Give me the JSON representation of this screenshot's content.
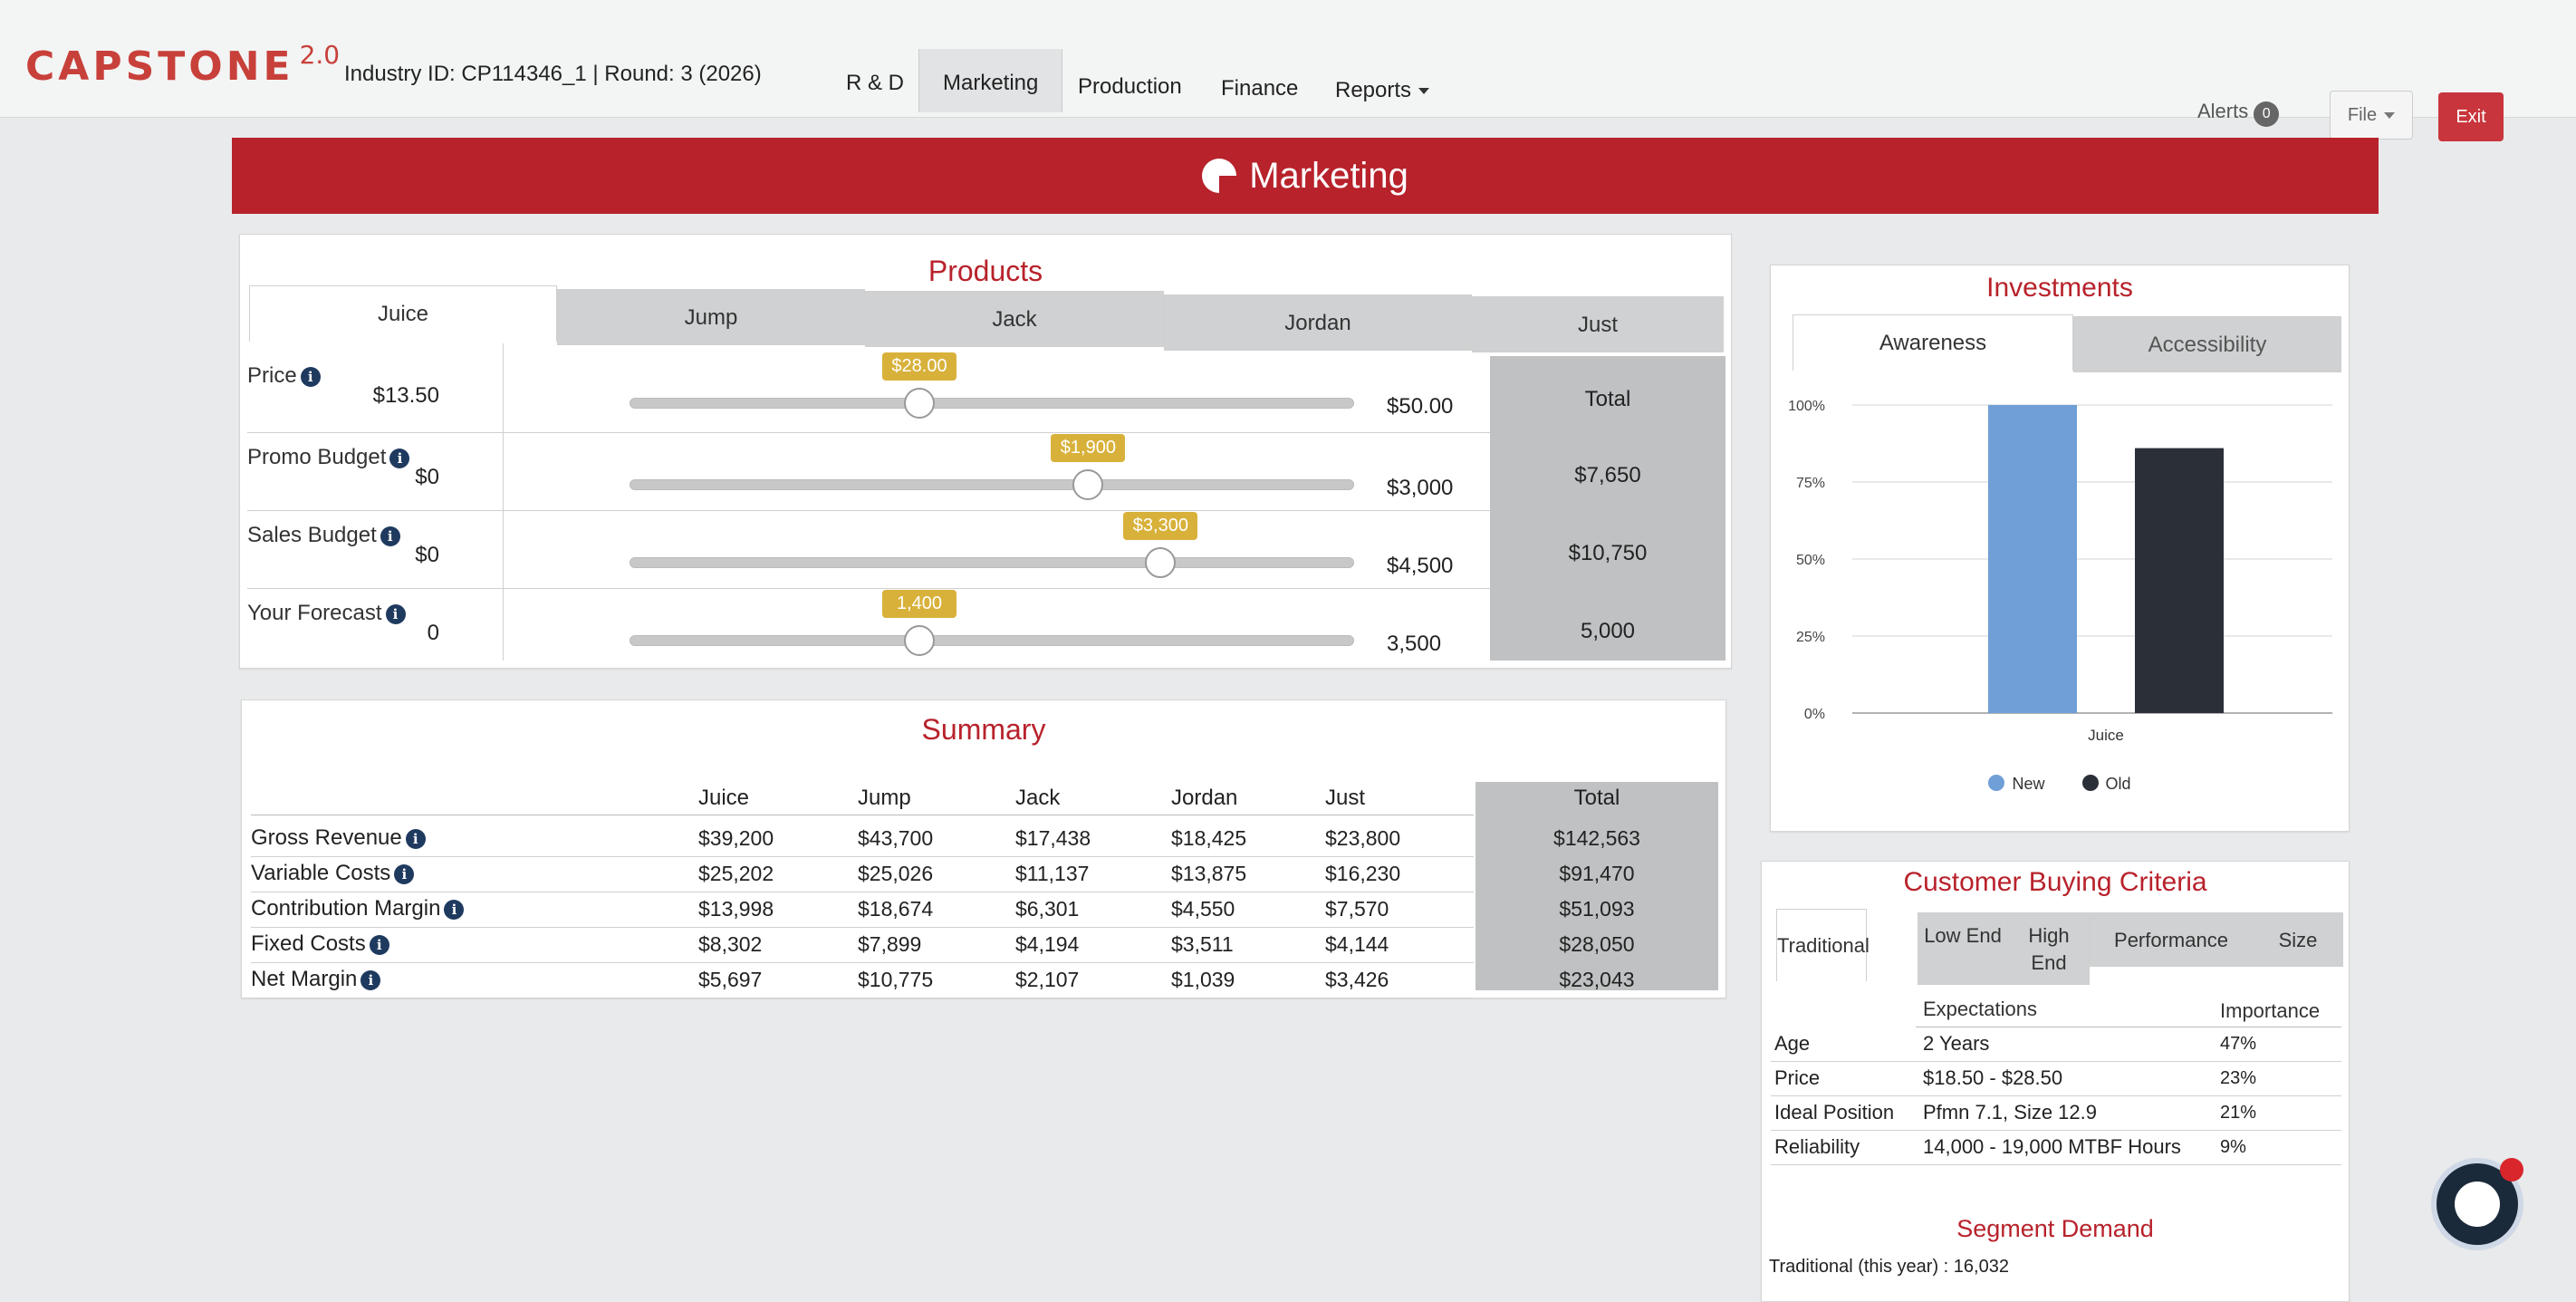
{
  "app": {
    "logo": "CAPSTONE",
    "logo_version": "2.0",
    "industry_info": "Industry ID: CP114346_1 |  Round: 3 (2026)",
    "nav": [
      "R & D",
      "Marketing",
      "Production",
      "Finance",
      "Reports"
    ],
    "alerts_label": "Alerts",
    "alerts_count": "0",
    "file_label": "File",
    "exit_label": "Exit"
  },
  "banner": {
    "title": "Marketing"
  },
  "products": {
    "title": "Products",
    "tabs": [
      "Juice",
      "Jump",
      "Jack",
      "Jordan",
      "Just"
    ],
    "active_tab": "Juice",
    "total_header": "Total",
    "rows": [
      {
        "label": "Price",
        "min": "$13.50",
        "max": "$50.00",
        "value": "$28.00",
        "fraction": 0.4,
        "total": ""
      },
      {
        "label": "Promo Budget",
        "min": "$0",
        "max": "$3,000",
        "value": "$1,900",
        "fraction": 0.633,
        "total": "$7,650"
      },
      {
        "label": "Sales Budget",
        "min": "$0",
        "max": "$4,500",
        "value": "$3,300",
        "fraction": 0.733,
        "total": "$10,750"
      },
      {
        "label": "Your Forecast",
        "min": "0",
        "max": "3,500",
        "value": "1,400",
        "fraction": 0.4,
        "total": "5,000"
      }
    ]
  },
  "summary": {
    "title": "Summary",
    "columns": [
      "Juice",
      "Jump",
      "Jack",
      "Jordan",
      "Just",
      "Total"
    ],
    "rows": [
      {
        "label": "Gross Revenue",
        "values": [
          "$39,200",
          "$43,700",
          "$17,438",
          "$18,425",
          "$23,800",
          "$142,563"
        ]
      },
      {
        "label": "Variable Costs",
        "values": [
          "$25,202",
          "$25,026",
          "$11,137",
          "$13,875",
          "$16,230",
          "$91,470"
        ]
      },
      {
        "label": "Contribution Margin",
        "values": [
          "$13,998",
          "$18,674",
          "$6,301",
          "$4,550",
          "$7,570",
          "$51,093"
        ]
      },
      {
        "label": "Fixed Costs",
        "values": [
          "$8,302",
          "$7,899",
          "$4,194",
          "$3,511",
          "$4,144",
          "$28,050"
        ]
      },
      {
        "label": "Net Margin",
        "values": [
          "$5,697",
          "$10,775",
          "$2,107",
          "$1,039",
          "$3,426",
          "$23,043"
        ]
      }
    ]
  },
  "investments": {
    "title": "Investments",
    "tabs": [
      "Awareness",
      "Accessibility"
    ],
    "active_tab": "Awareness",
    "legend": [
      "New",
      "Old"
    ]
  },
  "chart_data": {
    "type": "bar",
    "categories": [
      "Juice"
    ],
    "series": [
      {
        "name": "New",
        "values": [
          100
        ],
        "color": "#6f9fd6"
      },
      {
        "name": "Old",
        "values": [
          86
        ],
        "color": "#2b3038"
      }
    ],
    "yticks": [
      "100%",
      "75%",
      "50%",
      "25%",
      "0%"
    ],
    "ylim": [
      0,
      100
    ],
    "grid": true,
    "legend_position": "bottom"
  },
  "criteria": {
    "title": "Customer Buying Criteria",
    "tabs": [
      "Traditional",
      "Low End",
      "High End",
      "Performance",
      "Size"
    ],
    "active_tab": "Traditional",
    "headers": [
      "Expectations",
      "Importance"
    ],
    "rows": [
      {
        "label": "Age",
        "expectation": "2 Years",
        "importance": "47%"
      },
      {
        "label": "Price",
        "expectation": "$18.50 - $28.50",
        "importance": "23%"
      },
      {
        "label": "Ideal Position",
        "expectation": "Pfmn 7.1, Size 12.9",
        "importance": "21%"
      },
      {
        "label": "Reliability",
        "expectation": "14,000 - 19,000 MTBF Hours",
        "importance": "9%"
      }
    ],
    "demand_title": "Segment Demand",
    "demand_text": "Traditional (this year) : 16,032"
  },
  "colors": {
    "accent": "#b8222b",
    "tooltip": "#d8b13a",
    "exit": "#c9353c"
  }
}
